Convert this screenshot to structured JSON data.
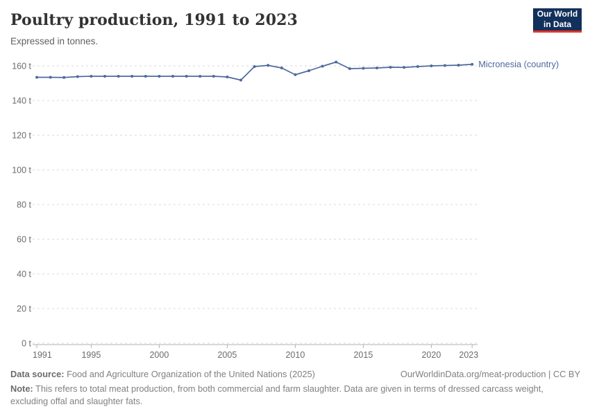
{
  "header": {
    "title": "Poultry production, 1991 to 2023",
    "subtitle": "Expressed in tonnes.",
    "logo": {
      "line1": "Our World",
      "line2": "in Data",
      "bg": "#12305c",
      "accent": "#e0352b"
    }
  },
  "chart_data": {
    "type": "line",
    "title": "Poultry production, 1991 to 2023",
    "subtitle": "Expressed in tonnes.",
    "unit": "t",
    "xlabel": "",
    "ylabel": "",
    "xlim": [
      1991,
      2023
    ],
    "ylim": [
      0,
      160
    ],
    "x_ticks": [
      1991,
      1995,
      2000,
      2005,
      2010,
      2015,
      2020,
      2023
    ],
    "y_ticks": [
      0,
      20,
      40,
      60,
      80,
      100,
      120,
      140,
      160
    ],
    "y_tick_suffix": " t",
    "grid": "horizontal-dashed",
    "legend_position": "end-of-line-label",
    "series": [
      {
        "name": "Micronesia (country)",
        "color": "#4c6a9c",
        "x": [
          1991,
          1992,
          1993,
          1994,
          1995,
          1996,
          1997,
          1998,
          1999,
          2000,
          2001,
          2002,
          2003,
          2004,
          2005,
          2006,
          2007,
          2008,
          2009,
          2010,
          2011,
          2012,
          2013,
          2014,
          2015,
          2016,
          2017,
          2018,
          2019,
          2020,
          2021,
          2022,
          2023
        ],
        "values": [
          153.4,
          153.4,
          153.3,
          153.8,
          154,
          154,
          154,
          154,
          154,
          154,
          154,
          154,
          154,
          154,
          153.6,
          151.8,
          159.6,
          160.3,
          158.8,
          154.9,
          157.2,
          159.8,
          162.2,
          158.4,
          158.6,
          158.8,
          159.2,
          159.1,
          159.6,
          160,
          160.2,
          160.4,
          160.9
        ]
      }
    ],
    "colors": {
      "gridline": "#d9d9d9",
      "axis_line": "#b0b0b0",
      "tick_label": "#6b6b6b"
    }
  },
  "footer": {
    "datasource_label": "Data source:",
    "datasource_text": " Food and Agriculture Organization of the United Nations (2025)",
    "link_text": "OurWorldinData.org/meat-production | CC BY",
    "note_label": "Note:",
    "note_text": " This refers to total meat production, from both commercial and farm slaughter. Data are given in terms of dressed carcass weight, excluding offal and slaughter fats."
  }
}
